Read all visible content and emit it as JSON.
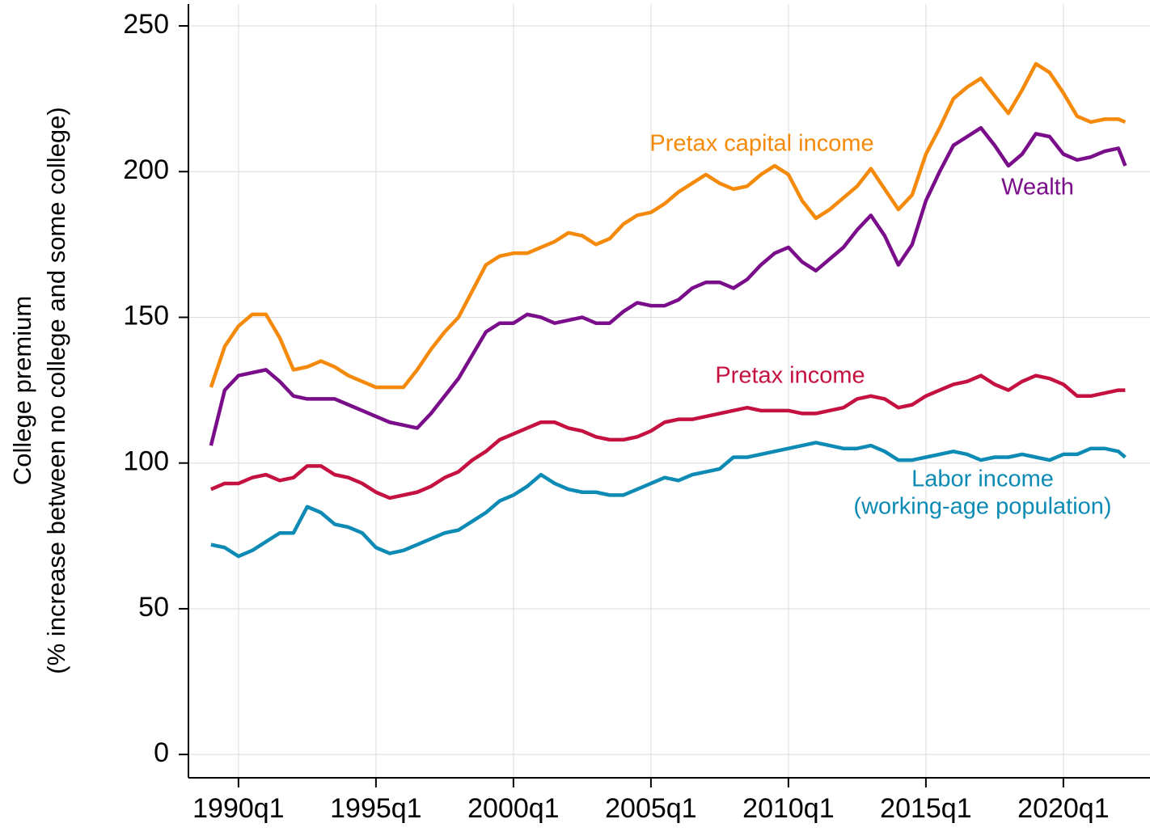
{
  "chart_data": {
    "type": "line",
    "y_label": [
      "College premium",
      "(% increase between no college and some college)"
    ],
    "x": [
      1989.0,
      1989.5,
      1990.0,
      1990.5,
      1991.0,
      1991.5,
      1992.0,
      1992.5,
      1993.0,
      1993.5,
      1994.0,
      1994.5,
      1995.0,
      1995.5,
      1996.0,
      1996.5,
      1997.0,
      1997.5,
      1998.0,
      1998.5,
      1999.0,
      1999.5,
      2000.0,
      2000.5,
      2001.0,
      2001.5,
      2002.0,
      2002.5,
      2003.0,
      2003.5,
      2004.0,
      2004.5,
      2005.0,
      2005.5,
      2006.0,
      2006.5,
      2007.0,
      2007.5,
      2008.0,
      2008.5,
      2009.0,
      2009.5,
      2010.0,
      2010.5,
      2011.0,
      2011.5,
      2012.0,
      2012.5,
      2013.0,
      2013.5,
      2014.0,
      2014.5,
      2015.0,
      2015.5,
      2016.0,
      2016.5,
      2017.0,
      2017.5,
      2018.0,
      2018.5,
      2019.0,
      2019.5,
      2020.0,
      2020.5,
      2021.0,
      2021.5,
      2022.0,
      2022.25
    ],
    "series": [
      {
        "name": "Pretax capital income",
        "color": "#f5890a",
        "values": [
          126,
          140,
          147,
          151,
          151,
          143,
          132,
          133,
          135,
          133,
          130,
          128,
          126,
          126,
          126,
          132,
          139,
          145,
          150,
          159,
          168,
          171,
          172,
          172,
          174,
          176,
          179,
          178,
          175,
          177,
          182,
          185,
          186,
          189,
          193,
          196,
          199,
          196,
          194,
          195,
          199,
          202,
          199,
          190,
          184,
          187,
          191,
          195,
          201,
          194,
          187,
          192,
          206,
          215,
          225,
          229,
          232,
          226,
          220,
          228,
          237,
          234,
          227,
          219,
          217,
          218,
          218,
          217
        ]
      },
      {
        "name": "Wealth",
        "color": "#7a0e8a",
        "values": [
          106,
          125,
          130,
          131,
          132,
          128,
          123,
          122,
          122,
          122,
          120,
          118,
          116,
          114,
          113,
          112,
          117,
          123,
          129,
          137,
          145,
          148,
          148,
          151,
          150,
          148,
          149,
          150,
          148,
          148,
          152,
          155,
          154,
          154,
          156,
          160,
          162,
          162,
          160,
          163,
          168,
          172,
          174,
          169,
          166,
          170,
          174,
          180,
          185,
          178,
          168,
          175,
          190,
          200,
          209,
          212,
          215,
          209,
          202,
          206,
          213,
          212,
          206,
          204,
          205,
          207,
          208,
          202
        ]
      },
      {
        "name": "Pretax income",
        "color": "#c5113f",
        "values": [
          91,
          93,
          93,
          95,
          96,
          94,
          95,
          99,
          99,
          96,
          95,
          93,
          90,
          88,
          89,
          90,
          92,
          95,
          97,
          101,
          104,
          108,
          110,
          112,
          114,
          114,
          112,
          111,
          109,
          108,
          108,
          109,
          111,
          114,
          115,
          115,
          116,
          117,
          118,
          119,
          118,
          118,
          118,
          117,
          117,
          118,
          119,
          122,
          123,
          122,
          119,
          120,
          123,
          125,
          127,
          128,
          130,
          127,
          125,
          128,
          130,
          129,
          127,
          123,
          123,
          124,
          125,
          125
        ]
      },
      {
        "name": [
          "Labor income",
          "(working-age population)"
        ],
        "color": "#0d8bb5",
        "values": [
          72,
          71,
          68,
          70,
          73,
          76,
          76,
          85,
          83,
          79,
          78,
          76,
          71,
          69,
          70,
          72,
          74,
          76,
          77,
          80,
          83,
          87,
          89,
          92,
          96,
          93,
          91,
          90,
          90,
          89,
          89,
          91,
          93,
          95,
          94,
          96,
          97,
          98,
          102,
          102,
          103,
          104,
          105,
          106,
          107,
          106,
          105,
          105,
          106,
          104,
          101,
          101,
          102,
          103,
          104,
          103,
          101,
          102,
          102,
          103,
          102,
          101,
          103,
          103,
          105,
          105,
          104,
          102
        ]
      }
    ],
    "xlim": [
      1988.18,
      2023.15
    ],
    "ylim": [
      -8,
      257.5
    ],
    "xticks": [
      {
        "value": 1990,
        "label": "1990q1"
      },
      {
        "value": 1995,
        "label": "1995q1"
      },
      {
        "value": 2000,
        "label": "2000q1"
      },
      {
        "value": 2005,
        "label": "2005q1"
      },
      {
        "value": 2010,
        "label": "2010q1"
      },
      {
        "value": 2015,
        "label": "2015q1"
      },
      {
        "value": 2020,
        "label": "2020q1"
      }
    ],
    "yticks": [
      0,
      50,
      100,
      150,
      200,
      250
    ],
    "grid": true
  }
}
